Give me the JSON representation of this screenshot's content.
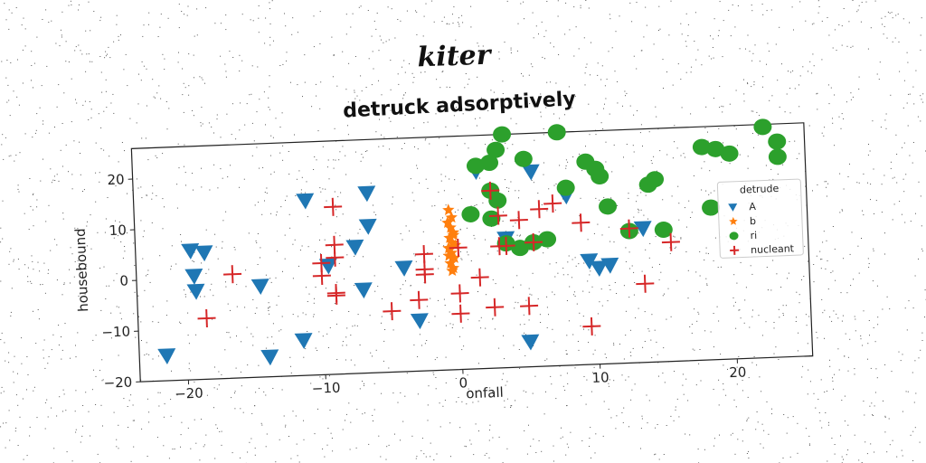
{
  "chart_data": {
    "type": "scatter",
    "suptitle": "kiter",
    "title": "detruck adsorptively",
    "xlabel": "onfall",
    "ylabel": "housebound",
    "xlim": [
      -23.5,
      25.5
    ],
    "ylim": [
      -20,
      26
    ],
    "xticks": [
      -20,
      -10,
      0,
      10,
      20
    ],
    "yticks": [
      -20,
      -10,
      0,
      10,
      20
    ],
    "xtick_labels": [
      "−20",
      "−10",
      "0",
      "10",
      "20"
    ],
    "ytick_labels": [
      "−20",
      "−10",
      "0",
      "10",
      "20"
    ],
    "grid": false,
    "legend": {
      "title": "detrude",
      "position": "center-right"
    },
    "series": [
      {
        "name": "A",
        "marker": "triangle-down",
        "color": "#1f77b4",
        "points": [
          [
            -19.5,
            5.5
          ],
          [
            -18.5,
            5
          ],
          [
            -19.3,
            0.5
          ],
          [
            -19.2,
            -2.5
          ],
          [
            -14.5,
            -2
          ],
          [
            -14,
            -16
          ],
          [
            -21.5,
            -15
          ],
          [
            -11,
            14.5
          ],
          [
            -6.5,
            15.5
          ],
          [
            -6.5,
            9
          ],
          [
            -7.5,
            5
          ],
          [
            -9.5,
            1.5
          ],
          [
            -7,
            -3.5
          ],
          [
            -11.5,
            -13
          ],
          [
            -4,
            0.5
          ],
          [
            -3,
            -10
          ],
          [
            1.5,
            19
          ],
          [
            5.5,
            18.5
          ],
          [
            3.5,
            5.5
          ],
          [
            5,
            -15
          ],
          [
            9.5,
            0.5
          ],
          [
            10.2,
            -1
          ],
          [
            11,
            -0.5
          ],
          [
            13.5,
            6.5
          ],
          [
            8,
            13.5
          ]
        ]
      },
      {
        "name": "b",
        "marker": "star",
        "color": "#ff7f0e",
        "points": [
          [
            -0.6,
            11.5
          ],
          [
            -0.4,
            10
          ],
          [
            -0.7,
            9
          ],
          [
            -0.5,
            8
          ],
          [
            -0.3,
            7
          ],
          [
            -0.6,
            6
          ],
          [
            -0.4,
            5
          ],
          [
            -0.7,
            4
          ],
          [
            -0.5,
            3
          ],
          [
            -0.3,
            2
          ],
          [
            -0.6,
            1
          ],
          [
            -0.4,
            0
          ],
          [
            -0.5,
            -0.5
          ],
          [
            -0.3,
            6.5
          ],
          [
            -0.7,
            2.5
          ],
          [
            -0.2,
            4.5
          ]
        ]
      },
      {
        "name": "ri",
        "marker": "circle",
        "color": "#2ca02c",
        "points": [
          [
            1.5,
            20
          ],
          [
            2.5,
            20.5
          ],
          [
            3,
            23
          ],
          [
            3.5,
            26
          ],
          [
            5,
            21
          ],
          [
            7.5,
            26
          ],
          [
            9.5,
            26.5
          ],
          [
            9.5,
            20
          ],
          [
            10.2,
            18.5
          ],
          [
            10.5,
            17
          ],
          [
            8,
            15
          ],
          [
            2.5,
            15
          ],
          [
            3,
            13
          ],
          [
            1,
            10.5
          ],
          [
            2.5,
            9.5
          ],
          [
            3.5,
            4.5
          ],
          [
            5.5,
            4.5
          ],
          [
            6.5,
            5
          ],
          [
            4.5,
            3.5
          ],
          [
            11,
            11
          ],
          [
            12.5,
            6
          ],
          [
            15,
            6
          ],
          [
            14,
            15
          ],
          [
            14.5,
            16
          ],
          [
            18,
            22
          ],
          [
            19,
            21.5
          ],
          [
            20,
            20.5
          ],
          [
            18.5,
            10
          ],
          [
            22.5,
            25.5
          ],
          [
            23.5,
            22.5
          ],
          [
            23.5,
            19.5
          ]
        ]
      },
      {
        "name": "nucleant",
        "marker": "plus",
        "color": "#d62728",
        "points": [
          [
            -9,
            13
          ],
          [
            -9,
            5.5
          ],
          [
            -9,
            3
          ],
          [
            -10,
            2
          ],
          [
            -10,
            -0.5
          ],
          [
            -9,
            -4
          ],
          [
            -9,
            -4.5
          ],
          [
            -16.5,
            0.5
          ],
          [
            -18.5,
            -8
          ],
          [
            -5,
            -8
          ],
          [
            -2.5,
            3
          ],
          [
            -2.5,
            0
          ],
          [
            -2.5,
            -1
          ],
          [
            -3,
            -6
          ],
          [
            0,
            -5
          ],
          [
            0,
            -9
          ],
          [
            0,
            4
          ],
          [
            1.5,
            -2
          ],
          [
            2.5,
            15
          ],
          [
            3,
            10
          ],
          [
            3.5,
            4
          ],
          [
            3,
            4
          ],
          [
            4.5,
            9
          ],
          [
            5.5,
            4.5
          ],
          [
            7,
            12
          ],
          [
            5,
            -8
          ],
          [
            6,
            11
          ],
          [
            9,
            8
          ],
          [
            9.5,
            -12.5
          ],
          [
            12.5,
            6.5
          ],
          [
            13.5,
            -4.5
          ],
          [
            15.5,
            3.5
          ],
          [
            2.5,
            -8
          ]
        ]
      }
    ]
  }
}
